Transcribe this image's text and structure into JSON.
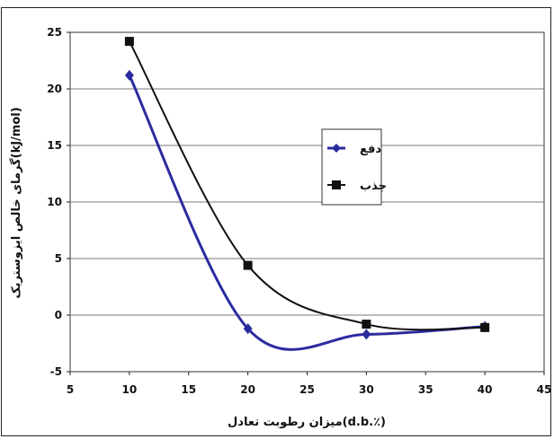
{
  "chart_data": {
    "type": "line",
    "title": "",
    "xlabel": "میزان رطوبت تعادل(d.b.٪)",
    "ylabel": "گرمای خالص ایزوستریک(kJ/mol)",
    "xlim": [
      5,
      45
    ],
    "ylim": [
      -5,
      25
    ],
    "x_ticks": [
      5,
      10,
      15,
      20,
      25,
      30,
      35,
      40,
      45
    ],
    "y_ticks": [
      -5,
      0,
      5,
      10,
      15,
      20,
      25
    ],
    "grid": "horizontal",
    "legend_position": "right",
    "series": [
      {
        "name": "دفع",
        "color": "#2b2ba0",
        "marker": "diamond",
        "x": [
          10,
          20,
          30,
          40
        ],
        "y": [
          21.2,
          -1.2,
          -1.7,
          -1.0
        ]
      },
      {
        "name": "جذب",
        "color": "#111111",
        "marker": "square",
        "x": [
          10,
          20,
          30,
          40
        ],
        "y": [
          24.2,
          4.4,
          -0.8,
          -1.1
        ]
      }
    ]
  }
}
